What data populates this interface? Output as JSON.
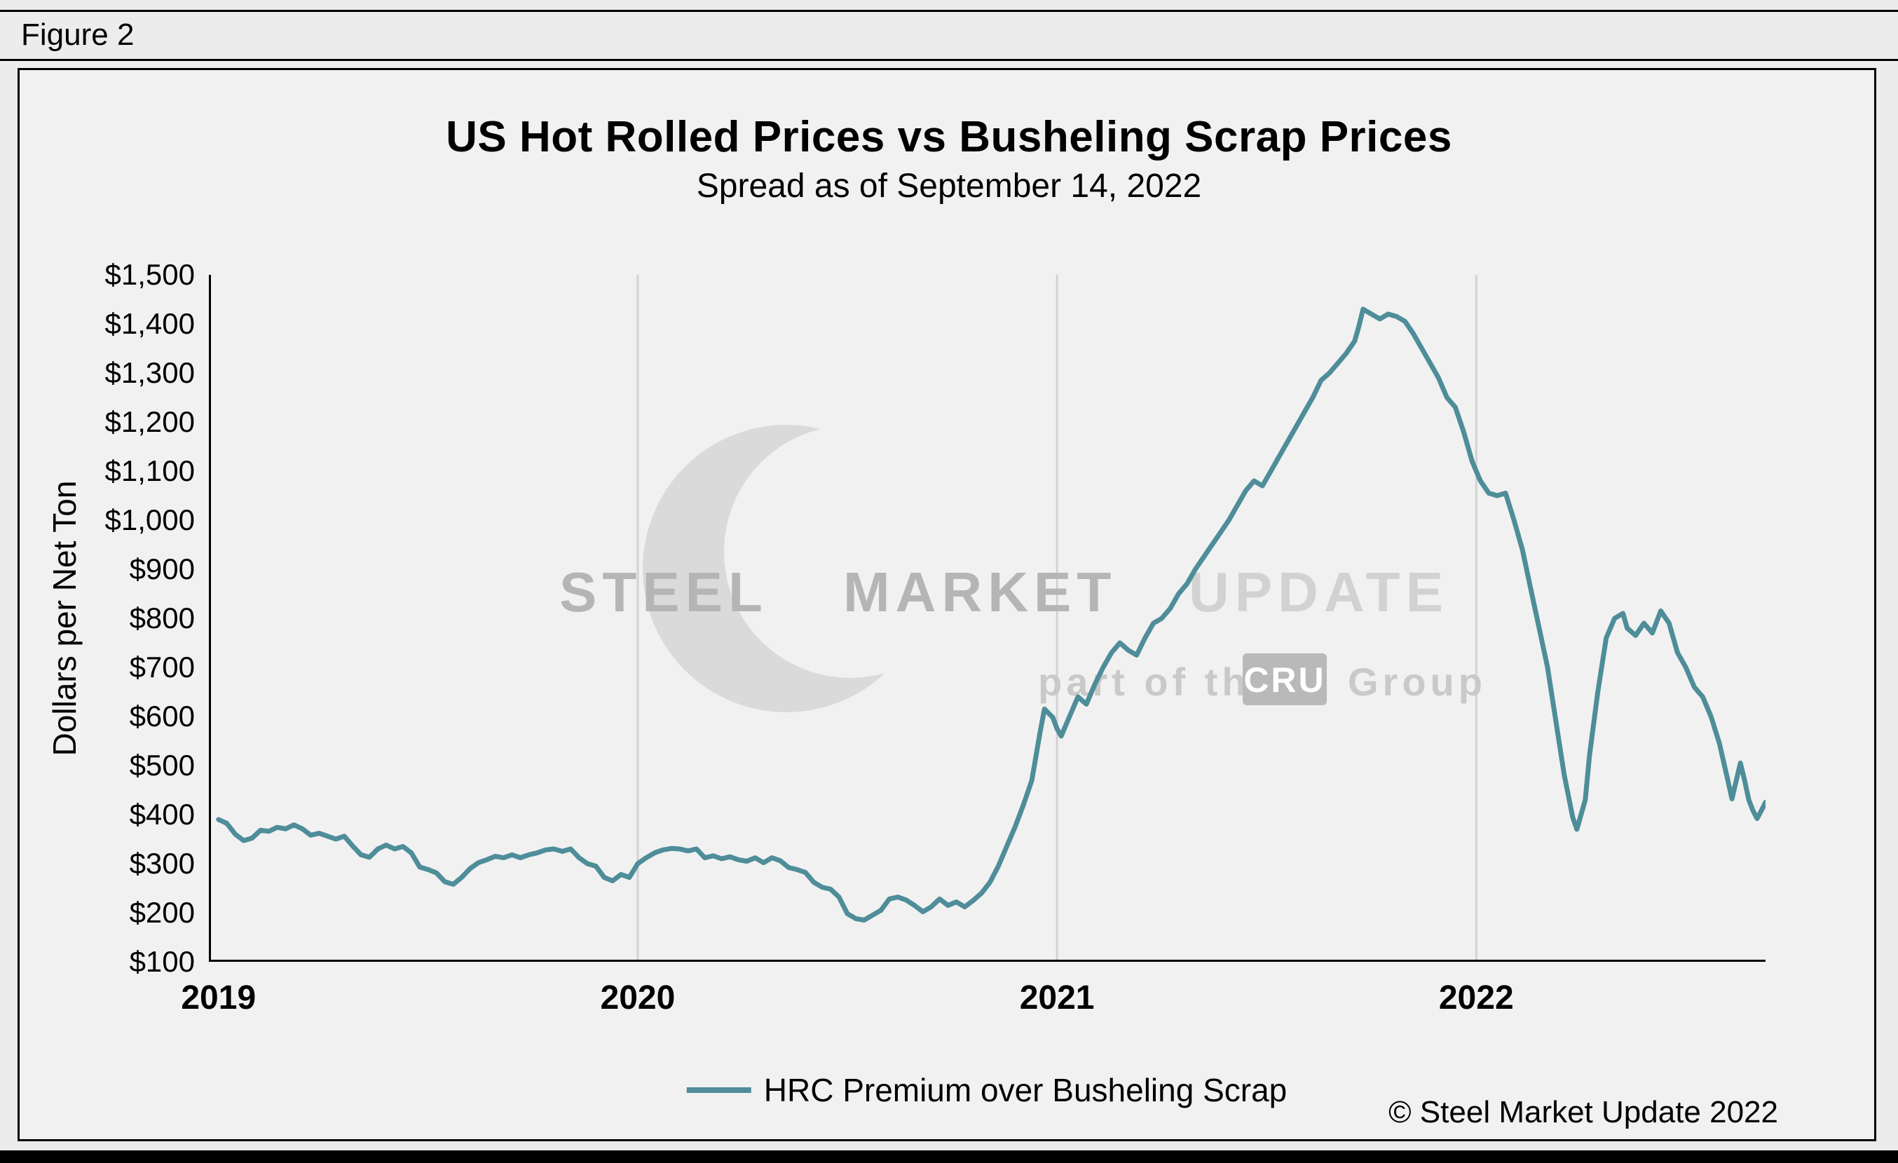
{
  "figure_label": "Figure 2",
  "title": "US Hot Rolled Prices vs Busheling Scrap Prices",
  "subtitle": "Spread as of September 14, 2022",
  "y_axis_label": "Dollars per Net Ton",
  "legend": {
    "label": "HRC Premium over Busheling Scrap",
    "line_color": "#4e8d99"
  },
  "copyright": "© Steel Market Update 2022",
  "watermark": {
    "primary": "STEEL",
    "primary2": "MARKET",
    "secondary": "UPDATE",
    "tagline_prefix": "part of the",
    "tagline_box": "CRU",
    "tagline_suffix": "Group"
  },
  "colors": {
    "line": "#4e8d99",
    "grid": "#d2d2d2",
    "plot_background": "#f1f1f1",
    "axis": "#000000"
  },
  "chart_data": {
    "type": "line",
    "title": "US Hot Rolled Prices vs Busheling Scrap Prices",
    "subtitle": "Spread as of September 14, 2022",
    "xlabel": "",
    "ylabel": "Dollars per Net Ton",
    "legend_position": "bottom-center",
    "grid": "vertical-year-gridlines",
    "x_domain": [
      2018.977,
      2022.69
    ],
    "y_domain": [
      100,
      1500
    ],
    "y_ticks": [
      {
        "v": 1500,
        "label": "$1,500"
      },
      {
        "v": 1400,
        "label": "$1,400"
      },
      {
        "v": 1300,
        "label": "$1,300"
      },
      {
        "v": 1200,
        "label": "$1,200"
      },
      {
        "v": 1100,
        "label": "$1,100"
      },
      {
        "v": 1000,
        "label": "$1,000"
      },
      {
        "v": 900,
        "label": "$900"
      },
      {
        "v": 800,
        "label": "$800"
      },
      {
        "v": 700,
        "label": "$700"
      },
      {
        "v": 600,
        "label": "$600"
      },
      {
        "v": 500,
        "label": "$500"
      },
      {
        "v": 400,
        "label": "$400"
      },
      {
        "v": 300,
        "label": "$300"
      },
      {
        "v": 200,
        "label": "$200"
      },
      {
        "v": 100,
        "label": "$100"
      }
    ],
    "x_ticks": [
      {
        "v": 2019,
        "label": "2019"
      },
      {
        "v": 2020,
        "label": "2020"
      },
      {
        "v": 2021,
        "label": "2021"
      },
      {
        "v": 2022,
        "label": "2022"
      }
    ],
    "gridline_years": [
      2020,
      2021,
      2022
    ],
    "series": [
      {
        "name": "HRC Premium over Busheling Scrap",
        "color": "#4e8d99",
        "points": [
          [
            2019.0,
            390
          ],
          [
            2019.02,
            382
          ],
          [
            2019.04,
            360
          ],
          [
            2019.06,
            347
          ],
          [
            2019.08,
            352
          ],
          [
            2019.1,
            368
          ],
          [
            2019.12,
            366
          ],
          [
            2019.14,
            374
          ],
          [
            2019.16,
            371
          ],
          [
            2019.18,
            379
          ],
          [
            2019.2,
            371
          ],
          [
            2019.22,
            358
          ],
          [
            2019.24,
            362
          ],
          [
            2019.26,
            356
          ],
          [
            2019.28,
            350
          ],
          [
            2019.3,
            356
          ],
          [
            2019.32,
            336
          ],
          [
            2019.34,
            318
          ],
          [
            2019.36,
            313
          ],
          [
            2019.38,
            330
          ],
          [
            2019.4,
            338
          ],
          [
            2019.42,
            330
          ],
          [
            2019.44,
            335
          ],
          [
            2019.46,
            322
          ],
          [
            2019.48,
            293
          ],
          [
            2019.5,
            288
          ],
          [
            2019.52,
            281
          ],
          [
            2019.54,
            263
          ],
          [
            2019.56,
            258
          ],
          [
            2019.58,
            272
          ],
          [
            2019.6,
            290
          ],
          [
            2019.62,
            302
          ],
          [
            2019.64,
            308
          ],
          [
            2019.66,
            315
          ],
          [
            2019.68,
            312
          ],
          [
            2019.7,
            318
          ],
          [
            2019.72,
            312
          ],
          [
            2019.74,
            318
          ],
          [
            2019.76,
            322
          ],
          [
            2019.78,
            328
          ],
          [
            2019.8,
            330
          ],
          [
            2019.82,
            325
          ],
          [
            2019.84,
            330
          ],
          [
            2019.86,
            312
          ],
          [
            2019.88,
            300
          ],
          [
            2019.9,
            295
          ],
          [
            2019.92,
            272
          ],
          [
            2019.94,
            265
          ],
          [
            2019.96,
            278
          ],
          [
            2019.98,
            272
          ],
          [
            2020.0,
            300
          ],
          [
            2020.02,
            312
          ],
          [
            2020.04,
            322
          ],
          [
            2020.06,
            328
          ],
          [
            2020.08,
            331
          ],
          [
            2020.1,
            330
          ],
          [
            2020.12,
            326
          ],
          [
            2020.14,
            330
          ],
          [
            2020.16,
            312
          ],
          [
            2020.18,
            316
          ],
          [
            2020.2,
            310
          ],
          [
            2020.22,
            314
          ],
          [
            2020.24,
            308
          ],
          [
            2020.26,
            305
          ],
          [
            2020.28,
            312
          ],
          [
            2020.3,
            302
          ],
          [
            2020.32,
            312
          ],
          [
            2020.34,
            306
          ],
          [
            2020.36,
            292
          ],
          [
            2020.38,
            288
          ],
          [
            2020.4,
            282
          ],
          [
            2020.42,
            262
          ],
          [
            2020.44,
            252
          ],
          [
            2020.46,
            248
          ],
          [
            2020.48,
            232
          ],
          [
            2020.5,
            198
          ],
          [
            2020.52,
            188
          ],
          [
            2020.54,
            185
          ],
          [
            2020.56,
            195
          ],
          [
            2020.58,
            205
          ],
          [
            2020.6,
            228
          ],
          [
            2020.62,
            232
          ],
          [
            2020.64,
            226
          ],
          [
            2020.66,
            215
          ],
          [
            2020.68,
            202
          ],
          [
            2020.7,
            212
          ],
          [
            2020.72,
            228
          ],
          [
            2020.74,
            215
          ],
          [
            2020.76,
            222
          ],
          [
            2020.78,
            212
          ],
          [
            2020.8,
            225
          ],
          [
            2020.82,
            240
          ],
          [
            2020.84,
            262
          ],
          [
            2020.86,
            295
          ],
          [
            2020.88,
            335
          ],
          [
            2020.9,
            375
          ],
          [
            2020.92,
            420
          ],
          [
            2020.94,
            470
          ],
          [
            2020.95,
            520
          ],
          [
            2020.96,
            570
          ],
          [
            2020.97,
            615
          ],
          [
            2020.99,
            598
          ],
          [
            2021.0,
            575
          ],
          [
            2021.01,
            560
          ],
          [
            2021.03,
            600
          ],
          [
            2021.05,
            640
          ],
          [
            2021.07,
            625
          ],
          [
            2021.09,
            665
          ],
          [
            2021.11,
            700
          ],
          [
            2021.13,
            730
          ],
          [
            2021.15,
            750
          ],
          [
            2021.17,
            735
          ],
          [
            2021.19,
            725
          ],
          [
            2021.21,
            760
          ],
          [
            2021.23,
            790
          ],
          [
            2021.25,
            800
          ],
          [
            2021.27,
            820
          ],
          [
            2021.29,
            850
          ],
          [
            2021.31,
            870
          ],
          [
            2021.33,
            900
          ],
          [
            2021.35,
            925
          ],
          [
            2021.37,
            950
          ],
          [
            2021.39,
            975
          ],
          [
            2021.41,
            1000
          ],
          [
            2021.43,
            1030
          ],
          [
            2021.45,
            1060
          ],
          [
            2021.47,
            1080
          ],
          [
            2021.49,
            1070
          ],
          [
            2021.51,
            1100
          ],
          [
            2021.53,
            1130
          ],
          [
            2021.55,
            1160
          ],
          [
            2021.57,
            1190
          ],
          [
            2021.59,
            1220
          ],
          [
            2021.61,
            1250
          ],
          [
            2021.63,
            1285
          ],
          [
            2021.65,
            1300
          ],
          [
            2021.67,
            1320
          ],
          [
            2021.69,
            1340
          ],
          [
            2021.71,
            1365
          ],
          [
            2021.72,
            1395
          ],
          [
            2021.73,
            1430
          ],
          [
            2021.75,
            1420
          ],
          [
            2021.77,
            1410
          ],
          [
            2021.79,
            1420
          ],
          [
            2021.81,
            1415
          ],
          [
            2021.83,
            1405
          ],
          [
            2021.85,
            1380
          ],
          [
            2021.87,
            1350
          ],
          [
            2021.89,
            1320
          ],
          [
            2021.91,
            1290
          ],
          [
            2021.93,
            1250
          ],
          [
            2021.95,
            1230
          ],
          [
            2021.97,
            1180
          ],
          [
            2021.99,
            1120
          ],
          [
            2022.01,
            1080
          ],
          [
            2022.03,
            1055
          ],
          [
            2022.05,
            1050
          ],
          [
            2022.07,
            1055
          ],
          [
            2022.09,
            1000
          ],
          [
            2022.11,
            940
          ],
          [
            2022.13,
            860
          ],
          [
            2022.15,
            780
          ],
          [
            2022.17,
            700
          ],
          [
            2022.19,
            590
          ],
          [
            2022.21,
            480
          ],
          [
            2022.23,
            395
          ],
          [
            2022.24,
            370
          ],
          [
            2022.26,
            430
          ],
          [
            2022.27,
            520
          ],
          [
            2022.29,
            650
          ],
          [
            2022.31,
            760
          ],
          [
            2022.33,
            800
          ],
          [
            2022.35,
            810
          ],
          [
            2022.36,
            780
          ],
          [
            2022.38,
            765
          ],
          [
            2022.4,
            790
          ],
          [
            2022.42,
            770
          ],
          [
            2022.44,
            815
          ],
          [
            2022.46,
            790
          ],
          [
            2022.48,
            730
          ],
          [
            2022.5,
            700
          ],
          [
            2022.52,
            660
          ],
          [
            2022.54,
            640
          ],
          [
            2022.56,
            600
          ],
          [
            2022.58,
            545
          ],
          [
            2022.6,
            470
          ],
          [
            2022.61,
            432
          ],
          [
            2022.63,
            505
          ],
          [
            2022.64,
            470
          ],
          [
            2022.65,
            430
          ],
          [
            2022.66,
            408
          ],
          [
            2022.67,
            392
          ],
          [
            2022.68,
            408
          ],
          [
            2022.69,
            425
          ]
        ]
      }
    ]
  }
}
